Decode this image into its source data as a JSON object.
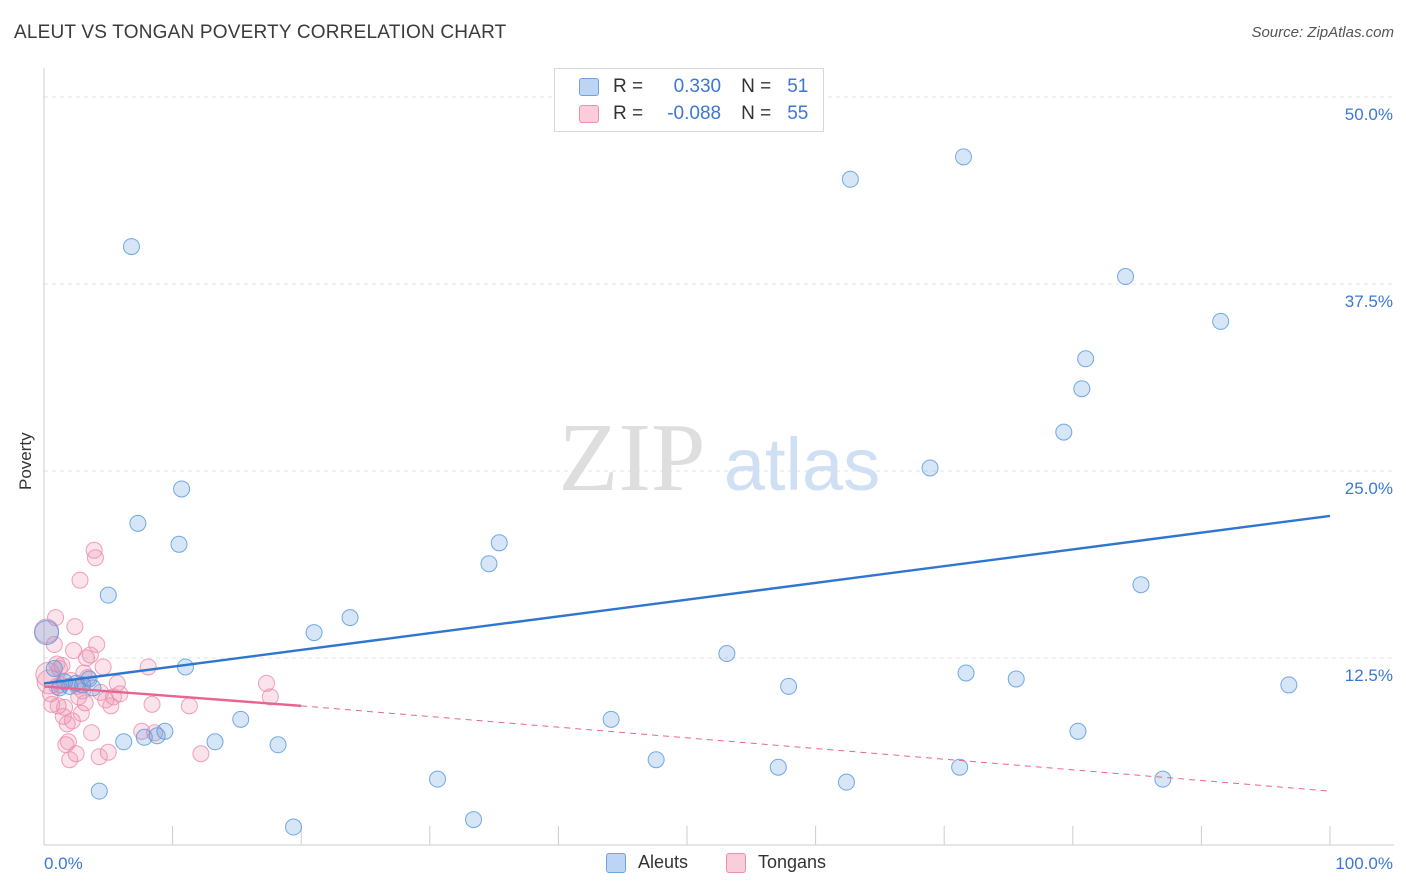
{
  "header": {
    "title": "ALEUT VS TONGAN POVERTY CORRELATION CHART",
    "source": "Source: ZipAtlas.com"
  },
  "watermark": {
    "zip": "ZIP",
    "atlas": "atlas"
  },
  "legend": {
    "rows": [
      {
        "r_label": "R =",
        "r_value": "0.330",
        "n_label": "N =",
        "n_value": "51",
        "color": "#a9c8f0"
      },
      {
        "r_label": "R =",
        "r_value": "-0.088",
        "n_label": "N =",
        "n_value": "55",
        "color": "#f4b6c8"
      }
    ]
  },
  "bottom_legend": {
    "aleuts": "Aleuts",
    "tongans": "Tongans"
  },
  "chart_data": {
    "type": "scatter",
    "title": "ALEUT VS TONGAN POVERTY CORRELATION CHART",
    "xlabel": "",
    "ylabel": "Poverty",
    "xlim": [
      0,
      100
    ],
    "ylim": [
      0,
      50
    ],
    "x_tick_labels": [
      "0.0%",
      "100.0%"
    ],
    "y_ticks": [
      12.5,
      25.0,
      37.5,
      50.0
    ],
    "y_tick_labels": [
      "12.5%",
      "25.0%",
      "37.5%",
      "50.0%"
    ],
    "grid": true,
    "colors": {
      "aleuts": "#5b9be0",
      "tongans": "#ec8fae",
      "aleuts_line": "#2f76d0",
      "tongans_line": "#e8658f"
    },
    "series": [
      {
        "name": "Aleuts",
        "r": 0.33,
        "n": 51,
        "trend": {
          "x0": 0,
          "y0": 10.8,
          "x1": 100,
          "y1": 22.0
        },
        "points": [
          [
            0.2,
            14.2
          ],
          [
            0.8,
            11.8
          ],
          [
            1.2,
            10.5
          ],
          [
            1.6,
            10.9
          ],
          [
            2.0,
            10.6
          ],
          [
            2.5,
            10.8
          ],
          [
            3.0,
            10.7
          ],
          [
            3.5,
            11.1
          ],
          [
            3.8,
            10.5
          ],
          [
            4.3,
            3.6
          ],
          [
            5.0,
            16.7
          ],
          [
            6.2,
            6.9
          ],
          [
            6.8,
            40.0
          ],
          [
            7.3,
            21.5
          ],
          [
            7.8,
            7.2
          ],
          [
            8.8,
            7.3
          ],
          [
            9.4,
            7.6
          ],
          [
            10.5,
            20.1
          ],
          [
            10.7,
            23.8
          ],
          [
            11.0,
            11.9
          ],
          [
            13.3,
            6.9
          ],
          [
            15.3,
            8.4
          ],
          [
            18.2,
            6.7
          ],
          [
            19.4,
            1.2
          ],
          [
            21.0,
            14.2
          ],
          [
            23.8,
            15.2
          ],
          [
            30.6,
            4.4
          ],
          [
            33.4,
            1.7
          ],
          [
            34.6,
            18.8
          ],
          [
            35.4,
            20.2
          ],
          [
            44.1,
            8.4
          ],
          [
            47.6,
            5.7
          ],
          [
            53.1,
            12.8
          ],
          [
            57.1,
            5.2
          ],
          [
            57.9,
            10.6
          ],
          [
            62.7,
            44.5
          ],
          [
            62.4,
            4.2
          ],
          [
            68.9,
            25.2
          ],
          [
            71.2,
            5.2
          ],
          [
            71.5,
            46.0
          ],
          [
            71.7,
            11.5
          ],
          [
            75.6,
            11.1
          ],
          [
            79.3,
            27.6
          ],
          [
            80.4,
            7.6
          ],
          [
            80.7,
            30.5
          ],
          [
            81.0,
            32.5
          ],
          [
            84.1,
            38.0
          ],
          [
            85.3,
            17.4
          ],
          [
            87.0,
            4.4
          ],
          [
            91.5,
            35.0
          ],
          [
            96.8,
            10.7
          ]
        ]
      },
      {
        "name": "Tongans",
        "r": -0.088,
        "n": 55,
        "trend": {
          "x0": 0,
          "y0": 10.6,
          "x1": 20,
          "y1": 9.3,
          "dash_x1": 100,
          "dash_y1": 3.6
        },
        "points": [
          [
            0.2,
            14.3
          ],
          [
            0.4,
            10.9
          ],
          [
            0.5,
            10.1
          ],
          [
            0.6,
            9.4
          ],
          [
            0.8,
            13.4
          ],
          [
            0.9,
            15.2
          ],
          [
            1.0,
            10.6
          ],
          [
            1.1,
            9.3
          ],
          [
            1.2,
            11.8
          ],
          [
            1.3,
            10.7
          ],
          [
            1.4,
            12.0
          ],
          [
            1.5,
            8.6
          ],
          [
            1.6,
            9.2
          ],
          [
            1.7,
            6.7
          ],
          [
            1.8,
            8.1
          ],
          [
            1.9,
            6.9
          ],
          [
            2.0,
            5.7
          ],
          [
            2.1,
            11.0
          ],
          [
            2.2,
            8.3
          ],
          [
            2.3,
            13.0
          ],
          [
            2.4,
            14.6
          ],
          [
            2.5,
            6.1
          ],
          [
            2.6,
            10.6
          ],
          [
            2.7,
            9.9
          ],
          [
            2.8,
            17.7
          ],
          [
            2.9,
            8.8
          ],
          [
            3.0,
            10.3
          ],
          [
            3.1,
            11.5
          ],
          [
            3.2,
            9.5
          ],
          [
            3.3,
            12.5
          ],
          [
            3.4,
            11.2
          ],
          [
            3.6,
            12.7
          ],
          [
            3.7,
            7.5
          ],
          [
            3.9,
            19.7
          ],
          [
            4.0,
            19.2
          ],
          [
            4.1,
            13.4
          ],
          [
            4.3,
            5.9
          ],
          [
            4.4,
            10.2
          ],
          [
            4.6,
            11.9
          ],
          [
            4.8,
            9.7
          ],
          [
            5.0,
            6.2
          ],
          [
            5.2,
            9.3
          ],
          [
            5.4,
            9.9
          ],
          [
            5.7,
            10.8
          ],
          [
            5.9,
            10.1
          ],
          [
            7.6,
            7.6
          ],
          [
            8.1,
            11.9
          ],
          [
            8.4,
            9.4
          ],
          [
            8.6,
            7.5
          ],
          [
            11.3,
            9.3
          ],
          [
            12.2,
            6.1
          ],
          [
            17.3,
            10.8
          ],
          [
            17.6,
            9.9
          ],
          [
            0.3,
            11.4
          ],
          [
            1.0,
            12.1
          ]
        ]
      }
    ]
  }
}
